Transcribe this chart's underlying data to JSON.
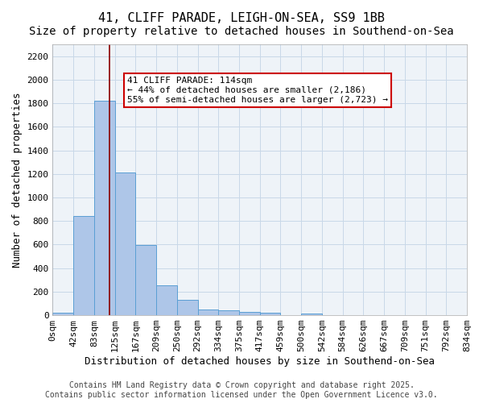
{
  "title1": "41, CLIFF PARADE, LEIGH-ON-SEA, SS9 1BB",
  "title2": "Size of property relative to detached houses in Southend-on-Sea",
  "xlabel": "Distribution of detached houses by size in Southend-on-Sea",
  "ylabel": "Number of detached properties",
  "bin_labels": [
    "0sqm",
    "42sqm",
    "83sqm",
    "125sqm",
    "167sqm",
    "209sqm",
    "250sqm",
    "292sqm",
    "334sqm",
    "375sqm",
    "417sqm",
    "459sqm",
    "500sqm",
    "542sqm",
    "584sqm",
    "626sqm",
    "667sqm",
    "709sqm",
    "751sqm",
    "792sqm",
    "834sqm"
  ],
  "bar_values": [
    20,
    845,
    1820,
    1210,
    595,
    255,
    130,
    50,
    45,
    30,
    18,
    0,
    15,
    0,
    0,
    0,
    0,
    0,
    0,
    0
  ],
  "bar_color": "#aec6e8",
  "bar_edge_color": "#5a9fd4",
  "vline_x": 2,
  "vline_color": "#8b0000",
  "annotation_text": "41 CLIFF PARADE: 114sqm\n← 44% of detached houses are smaller (2,186)\n55% of semi-detached houses are larger (2,723) →",
  "annotation_box_color": "white",
  "annotation_box_edge": "#cc0000",
  "ylim": [
    0,
    2300
  ],
  "yticks": [
    0,
    200,
    400,
    600,
    800,
    1000,
    1200,
    1400,
    1600,
    1800,
    2000,
    2200
  ],
  "grid_color": "#c8d8e8",
  "bg_color": "#eef3f8",
  "footer": "Contains HM Land Registry data © Crown copyright and database right 2025.\nContains public sector information licensed under the Open Government Licence v3.0.",
  "title1_fontsize": 11,
  "title2_fontsize": 10,
  "xlabel_fontsize": 9,
  "ylabel_fontsize": 9,
  "tick_fontsize": 8,
  "annotation_fontsize": 8,
  "footer_fontsize": 7
}
